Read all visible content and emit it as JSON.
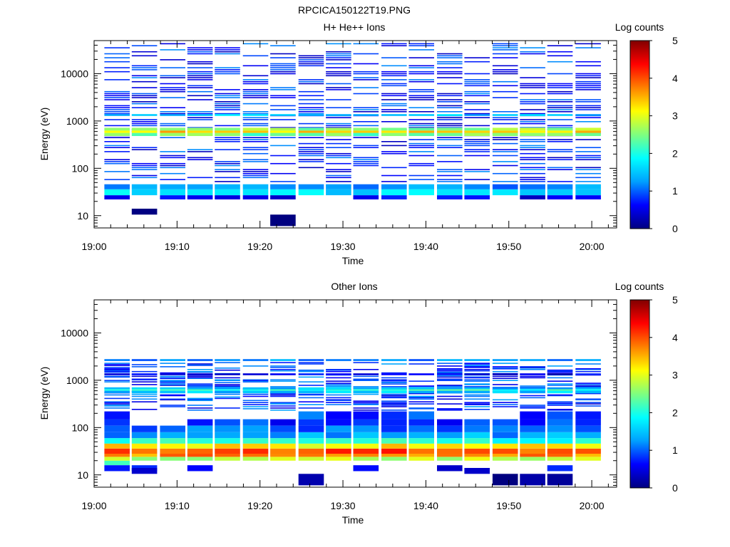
{
  "figure_title": "RPCICA150122T19.PNG",
  "colors": {
    "colormap": [
      "#000080",
      "#0000ff",
      "#00a0ff",
      "#00ffff",
      "#7fff7f",
      "#ffff00",
      "#ff8000",
      "#ff0000",
      "#800000"
    ],
    "background": "#ffffff",
    "axes": "#000000"
  },
  "chart_data": [
    {
      "type": "heatmap",
      "title": "H+ He++ Ions",
      "xlabel": "Time",
      "ylabel": "Energy (eV)",
      "xticks": [
        "19:00",
        "19:10",
        "19:20",
        "19:30",
        "19:40",
        "19:50",
        "20:00"
      ],
      "xlim_minutes": [
        0,
        63
      ],
      "yscale": "log",
      "ylim": [
        5.5,
        50000
      ],
      "yticks": [
        10,
        100,
        1000,
        10000
      ],
      "ytick_labels": [
        "10",
        "100",
        "1000",
        "10000"
      ],
      "colorbar": {
        "label": "Log counts",
        "range": [
          0,
          5
        ],
        "ticks": [
          "0",
          "1",
          "2",
          "3",
          "4",
          "5"
        ]
      },
      "time_bins_minutes": [
        2.7,
        6.0,
        9.4,
        12.7,
        16.0,
        19.4,
        22.7,
        26.1,
        29.4,
        32.7,
        36.1,
        39.4,
        42.8,
        46.1,
        49.5,
        52.8,
        56.1,
        59.5
      ],
      "bands": [
        {
          "energy_min": 22,
          "energy_max": 27,
          "log_counts": 0.5,
          "bins": [
            0,
            2,
            3,
            4,
            5,
            6,
            9,
            10,
            12,
            13,
            15,
            16,
            17
          ]
        },
        {
          "energy_min": 27,
          "energy_max": 36,
          "log_counts": 1.7,
          "bins": "all"
        },
        {
          "energy_min": 36,
          "energy_max": 46,
          "log_counts": 1.2,
          "bins": "all"
        },
        {
          "energy_min": 480,
          "energy_max": 560,
          "log_counts": 2.4,
          "bins": "all"
        },
        {
          "energy_min": 560,
          "energy_max": 630,
          "log_counts": 3.4,
          "bins": "all"
        },
        {
          "energy_min": 630,
          "energy_max": 720,
          "log_counts": 2.6,
          "bins": "all"
        },
        {
          "energy_min": 1280,
          "energy_max": 1400,
          "log_counts": 1.5,
          "bins": "all"
        },
        {
          "energy_min": 10.5,
          "energy_max": 14,
          "log_counts": 0.2,
          "bins": [
            1
          ]
        },
        {
          "energy_min": 6,
          "energy_max": 10.5,
          "log_counts": 0.2,
          "bins": [
            6
          ]
        }
      ],
      "sparse_low_counts": {
        "energy_range": [
          50,
          45000
        ],
        "log_counts": 0.3,
        "description_of_pattern": ""
      }
    },
    {
      "type": "heatmap",
      "title": "Other Ions",
      "xlabel": "Time",
      "ylabel": "Energy (eV)",
      "xticks": [
        "19:00",
        "19:10",
        "19:20",
        "19:30",
        "19:40",
        "19:50",
        "20:00"
      ],
      "xlim_minutes": [
        0,
        63
      ],
      "yscale": "log",
      "ylim": [
        5.5,
        50000
      ],
      "yticks": [
        10,
        100,
        1000,
        10000
      ],
      "ytick_labels": [
        "10",
        "100",
        "1000",
        "10000"
      ],
      "colorbar": {
        "label": "Log counts",
        "range": [
          0,
          5
        ],
        "ticks": [
          "0",
          "1",
          "2",
          "3",
          "4",
          "5"
        ]
      },
      "time_bins_minutes": [
        2.7,
        6.0,
        9.4,
        12.7,
        16.0,
        19.4,
        22.7,
        26.1,
        29.4,
        32.7,
        36.1,
        39.4,
        42.8,
        46.1,
        49.5,
        52.8,
        56.1,
        59.5
      ],
      "bands": [
        {
          "energy_min": 16,
          "energy_max": 20,
          "log_counts": 2.3,
          "bins": [
            0
          ]
        },
        {
          "energy_min": 20,
          "energy_max": 24,
          "log_counts": 2.8,
          "bins": "all"
        },
        {
          "energy_min": 24,
          "energy_max": 28,
          "log_counts": 3.7,
          "bins": "all"
        },
        {
          "energy_min": 28,
          "energy_max": 36,
          "log_counts": 4.0,
          "bins": "all"
        },
        {
          "energy_min": 36,
          "energy_max": 46,
          "log_counts": 3.2,
          "bins": "all"
        },
        {
          "energy_min": 46,
          "energy_max": 60,
          "log_counts": 2.0,
          "bins": "all"
        },
        {
          "energy_min": 60,
          "energy_max": 80,
          "log_counts": 1.3,
          "bins": "all"
        },
        {
          "energy_min": 80,
          "energy_max": 110,
          "log_counts": 1.0,
          "bins": "all"
        },
        {
          "energy_min": 110,
          "energy_max": 150,
          "log_counts": 0.8,
          "bins": [
            0,
            3,
            4,
            5,
            6,
            7,
            8,
            9,
            10,
            11,
            12,
            13,
            14,
            15,
            16,
            17
          ]
        },
        {
          "energy_min": 150,
          "energy_max": 220,
          "log_counts": 0.9,
          "bins": [
            0,
            7,
            8,
            9,
            10,
            11,
            15,
            16,
            17
          ]
        },
        {
          "energy_min": 530,
          "energy_max": 600,
          "log_counts": 1.5,
          "bins": "all"
        },
        {
          "energy_min": 600,
          "energy_max": 650,
          "log_counts": 2.1,
          "bins": "all"
        },
        {
          "energy_min": 650,
          "energy_max": 710,
          "log_counts": 1.4,
          "bins": "all"
        },
        {
          "energy_min": 1280,
          "energy_max": 1400,
          "log_counts": 0.5,
          "bins": "all"
        },
        {
          "energy_min": 2550,
          "energy_max": 2800,
          "log_counts": 1.2,
          "bins": "all"
        },
        {
          "energy_min": 12,
          "energy_max": 16,
          "log_counts": 0.6,
          "bins": [
            0,
            1,
            3,
            9,
            12,
            16
          ]
        },
        {
          "energy_min": 6,
          "energy_max": 10.5,
          "log_counts": 0.2,
          "bins": [
            7,
            14,
            15,
            16
          ]
        },
        {
          "energy_min": 10.5,
          "energy_max": 14,
          "log_counts": 0.2,
          "bins": [
            1,
            13
          ]
        }
      ],
      "sparse_low_counts": {
        "energy_range": [
          230,
          2400
        ],
        "log_counts": 0.4,
        "description_of_pattern": ""
      }
    }
  ]
}
